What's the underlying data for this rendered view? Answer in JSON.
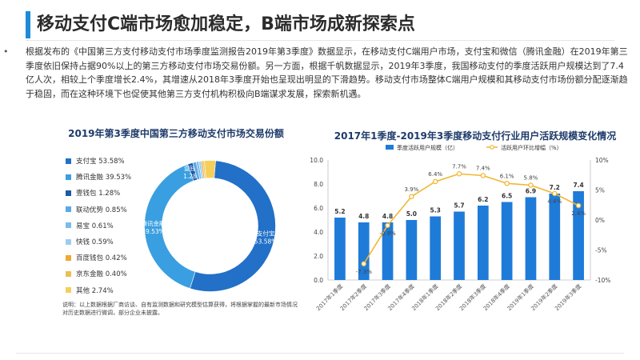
{
  "page": {
    "title": "移动支付C端市场愈加稳定，B端市场成新探索点",
    "bullet": "•",
    "intro": "根据发布的《中国第三方支付移动支付市场季度监测报告2019年第3季度》数据显示，在移动支付C端用户市场，支付宝和微信（腾讯金融）在2019年第三季度依旧保持占据90%以上的第三方移动支付市场交易份额。另一方面，根据千帆数据显示，2019年3季度，我国移动支付的季度活跃用户规模达到了7.4亿人次，相较上个季度增长2.4%，其增速从2018年3季度开始也呈现出明显的下滑趋势。移动支付市场整体C端用户规模和其移动支付市场份额分配逐渐趋于稳固，而在这种环境下也促使其他第三方支付机构积极向B端谋求发展，探索新机遇。",
    "note": "说明：以上数据根据厂商访谈、自有监测数据和研究模型估算获得，将根据掌握的最新市场情况对历史数据进行微调，部分企业未披露。"
  },
  "colors": {
    "accent": "#1f8bd6",
    "bar": "#1f7bd8",
    "line": "#f2b630",
    "title": "#1e3a6a"
  },
  "chart_data": [
    {
      "type": "pie",
      "title": "2019年第3季度中国第三方移动支付市场交易份额",
      "labels": [
        "支付宝",
        "腾讯金融",
        "壹钱包",
        "联动优势",
        "易宝",
        "快钱",
        "百度钱包",
        "京东金融",
        "其他"
      ],
      "values": [
        53.58,
        39.53,
        1.28,
        0.85,
        0.61,
        0.59,
        0.42,
        0.4,
        2.74
      ],
      "legend_text": [
        "支付宝 53.58%",
        "腾讯金融 39.53%",
        "壹钱包 1.28%",
        "联动优势 0.85%",
        "易宝 0.61%",
        "快钱 0.59%",
        "百度钱包 0.42%",
        "京东金融 0.40%",
        "其他 2.74%"
      ],
      "colors": [
        "#2270c8",
        "#3a9fe0",
        "#1b5aa8",
        "#5aa9e6",
        "#79bcec",
        "#9ccdf1",
        "#f0a830",
        "#e8c054",
        "#f5cf5a"
      ],
      "slice_labels": {
        "支付宝": [
          "支付宝",
          "53.58%"
        ],
        "腾讯金融": [
          "腾讯金融",
          "39.53%"
        ],
        "壹钱包": [
          "壹钱包",
          "1.28%"
        ]
      },
      "legend_position": "left"
    },
    {
      "type": "bar",
      "title": "2017年1季度-2019年3季度移动支付行业用户活跃规模变化情况",
      "categories": [
        "2017年1季度",
        "2017年2季度",
        "2017年3季度",
        "2017年4季度",
        "2018年1季度",
        "2018年2季度",
        "2018年3季度",
        "2018年4季度",
        "2019年1季度",
        "2019年2季度",
        "2019年3季度"
      ],
      "series": [
        {
          "name": "季度活跃用户规模（亿）",
          "type": "bar",
          "axis": "left",
          "values": [
            5.2,
            4.8,
            4.8,
            5.0,
            5.3,
            5.7,
            6.2,
            6.5,
            6.9,
            7.2,
            7.4
          ]
        },
        {
          "name": "活跃用户环比增幅（%）",
          "type": "line",
          "axis": "right",
          "values": [
            null,
            -7.3,
            -0.9,
            3.9,
            6.4,
            7.7,
            7.4,
            6.1,
            5.8,
            4.4,
            2.4
          ]
        }
      ],
      "bar_labels": [
        "5.2",
        "4.8",
        "4.8",
        "5.0",
        "5.3",
        "5.7",
        "6.2",
        "6.5",
        "6.9",
        "7.2",
        "7.4"
      ],
      "line_labels": [
        null,
        "-7.3%",
        "-0.9%",
        "3.9%",
        "6.4%",
        "7.7%",
        "7.4%",
        "6.1%",
        "5.8%",
        "4.4%",
        "2.4%"
      ],
      "ylim_left": [
        0,
        10
      ],
      "left_ticks": [
        "0.0",
        "2.0",
        "4.0",
        "6.0",
        "8.0",
        "10.0"
      ],
      "ylim_right": [
        -10,
        10
      ],
      "right_ticks": [
        "-10%",
        "-5%",
        "0%",
        "5%",
        "10%"
      ],
      "grid": false,
      "legend_position": "top"
    }
  ]
}
